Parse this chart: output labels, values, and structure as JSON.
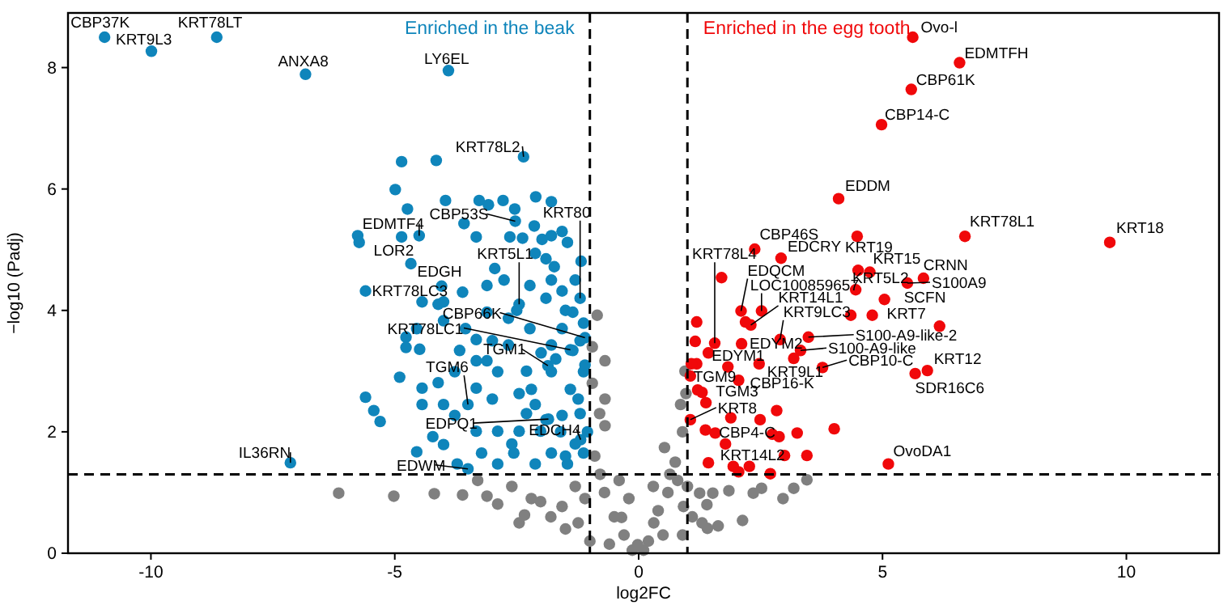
{
  "chart_data": {
    "type": "scatter",
    "xlabel": "log2FC",
    "ylabel": "−log10 (Padj)",
    "xlim": [
      -11.7,
      11.9
    ],
    "ylim": [
      0,
      8.9
    ],
    "xticks": [
      -10,
      -5,
      0,
      5,
      10
    ],
    "yticks": [
      0,
      2,
      4,
      6,
      8
    ],
    "grid": false,
    "marker": "circle",
    "series": [
      {
        "color": "#808080",
        "x": [
          -6.15,
          -5.02,
          -4.19,
          -3.61,
          -3.11,
          -2.89,
          -2.45,
          -2.34,
          -2.01,
          -1.57,
          -1.24,
          -0.79,
          -0.69,
          -0.85,
          -0.69,
          -0.69,
          -0.13,
          0.97,
          0.86,
          0.64,
          0.53,
          1.25,
          1.52,
          1.85,
          2.35,
          2.52,
          2.96,
          3.18,
          3.45,
          2.13,
          1.63,
          1.41,
          1.3,
          0.92,
          0.31,
          -0.02,
          -0.35,
          -0.9,
          -0.8,
          -0.95,
          -0.7,
          -0.5,
          -0.3,
          0.2,
          0.4,
          0.6,
          0.75,
          0.9,
          0.8,
          -1.5,
          -1.8,
          -2.2,
          -1.0,
          -0.6,
          0.1,
          0.5,
          0.9,
          1.1,
          1.4,
          -2.6,
          -3.3,
          -1.3,
          -0.95,
          0.95,
          -0.2,
          0.3,
          -1.1,
          1.0,
          -0.4
        ],
        "values": [
          0.99,
          0.94,
          0.98,
          0.96,
          0.94,
          0.81,
          0.5,
          0.63,
          0.85,
          0.77,
          0.5,
          1.3,
          2.1,
          3.92,
          3.17,
          2.54,
          0.05,
          2.63,
          2.45,
          1.3,
          1.74,
          0.99,
          0.99,
          1.03,
          0.99,
          1.07,
          0.9,
          1.07,
          1.21,
          0.54,
          0.45,
          0.41,
          0.5,
          0.77,
          0.5,
          0.14,
          0.59,
          1.6,
          2.3,
          2.8,
          1.0,
          0.6,
          0.3,
          0.2,
          0.7,
          1.0,
          1.5,
          2.0,
          1.2,
          0.4,
          0.6,
          0.9,
          0.2,
          0.15,
          0.05,
          0.3,
          0.3,
          0.6,
          0.8,
          1.1,
          1.2,
          1.1,
          3.4,
          3.0,
          0.9,
          1.1,
          0.9,
          1.1,
          1.2
        ]
      },
      {
        "name": "Enriched in the beak",
        "color": "#0f85bb",
        "x": [
          -10.95,
          -9.99,
          -8.65,
          -6.83,
          -3.9,
          -2.36,
          -2.53,
          -1.2,
          -4.5,
          -4.67,
          -4.04,
          -2.45,
          -5.6,
          -1.1,
          -1.4,
          -1.86,
          -3.5,
          -1.85,
          -1.19,
          -7.14,
          -3.5,
          -4.86,
          -4.15,
          -4.99,
          -4.74,
          -5.76,
          -5.73,
          -4.86,
          -3.58,
          -3.96,
          -3.27,
          -3.08,
          -2.78,
          -2.54,
          -2.11,
          -1.79,
          -3.33,
          -2.64,
          -2.38,
          -2.14,
          -1.98,
          -1.79,
          -1.57,
          -1.46,
          -1.18,
          -2.12,
          -1.9,
          -1.73,
          -2.95,
          -2.76,
          -2.23,
          -1.79,
          -1.57,
          -3.11,
          -3.61,
          -4.0,
          -4.44,
          -4.11,
          -4.0,
          -4.55,
          -4.77,
          -4.77,
          -4.49,
          -4.9,
          -5.6,
          -5.43,
          -5.3,
          -4.44,
          -4.11,
          -3.67,
          -3.33,
          -3.11,
          -2.89,
          -2.67,
          -2.45,
          -2.12,
          -1.79,
          -1.57,
          -1.35,
          -1.13,
          -3.33,
          -3.0,
          -3.77,
          -4.44,
          -4.22,
          -4.55,
          -4.0,
          -3.72,
          -3.22,
          -2.89,
          -2.56,
          -2.12,
          -1.79,
          -1.46,
          -1.13,
          -1.24,
          -1.57,
          -2.01,
          -2.45,
          -2.89,
          -3.33,
          -4.0,
          -1.13,
          -1.35,
          -1.79,
          -2.23,
          -2.67,
          -3.11,
          -3.55,
          -3.77,
          -3.33,
          -1.3,
          -1.6,
          -1.2,
          -1.9,
          -1.4,
          -1.7,
          -1.2,
          -2.0,
          -2.3,
          -1.5,
          -1.9,
          -1.3,
          -2.5,
          -2.2,
          -1.1,
          -2.6,
          -1.05,
          -1.5,
          -2.3,
          -3.0
        ],
        "values": [
          8.5,
          8.27,
          8.5,
          7.89,
          7.95,
          6.53,
          5.47,
          4.2,
          5.23,
          4.77,
          4.4,
          4.1,
          4.32,
          3.55,
          3.35,
          3.09,
          2.45,
          2.21,
          1.87,
          1.49,
          1.39,
          6.45,
          6.47,
          5.99,
          5.67,
          5.23,
          5.12,
          5.21,
          5.43,
          5.81,
          5.81,
          5.74,
          5.81,
          5.67,
          5.87,
          5.79,
          5.21,
          5.21,
          5.19,
          5.39,
          5.17,
          5.23,
          5.3,
          5.12,
          4.81,
          4.94,
          4.85,
          4.72,
          4.69,
          4.5,
          4.41,
          4.5,
          4.32,
          4.41,
          4.3,
          4.14,
          4.14,
          4.1,
          3.83,
          3.7,
          3.56,
          3.39,
          3.36,
          2.9,
          2.57,
          2.35,
          2.17,
          2.72,
          2.81,
          3.34,
          3.52,
          3.17,
          2.99,
          3.43,
          2.63,
          2.45,
          2.99,
          3.7,
          3.97,
          3.79,
          2.72,
          2.54,
          2.27,
          2.45,
          1.92,
          1.67,
          1.79,
          1.47,
          1.65,
          1.47,
          1.65,
          1.47,
          1.65,
          1.47,
          1.65,
          2.54,
          2.27,
          2.01,
          2.01,
          2.01,
          2.01,
          2.45,
          2.99,
          3.34,
          3.43,
          3.7,
          3.87,
          3.97,
          3.7,
          2.99,
          3.17,
          1.8,
          2.0,
          2.3,
          2.2,
          2.7,
          3.2,
          3.5,
          3.3,
          3.0,
          4.0,
          4.2,
          4.5,
          4.0,
          2.7,
          3.1,
          1.8,
          2.0,
          1.6,
          2.3,
          3.5
        ]
      },
      {
        "name": "Enriched in the egg tooth",
        "color": "#f0080a",
        "x": [
          5.62,
          6.58,
          5.59,
          4.98,
          4.1,
          6.69,
          9.66,
          2.38,
          2.92,
          4.5,
          4.74,
          5.84,
          5.51,
          4.45,
          1.56,
          2.1,
          2.52,
          2.3,
          5.04,
          4.79,
          2.9,
          3.48,
          3.32,
          2.11,
          1.83,
          2.47,
          3.77,
          5.92,
          5.67,
          1.19,
          2.05,
          1.38,
          1.06,
          1.78,
          2.27,
          5.12,
          1.19,
          1.16,
          1.43,
          1.08,
          1.06,
          1.21,
          1.3,
          1.89,
          2.49,
          2.83,
          1.37,
          1.57,
          2.74,
          2.88,
          3.25,
          4.01,
          1.43,
          1.94,
          2.05,
          2.7,
          2.99,
          3.45,
          2.19,
          4.35,
          6.17,
          3.18,
          1.7,
          4.48
        ],
        "values": [
          8.5,
          8.08,
          7.64,
          7.06,
          5.84,
          5.22,
          5.12,
          5.01,
          4.86,
          4.66,
          4.63,
          4.53,
          4.45,
          4.34,
          3.46,
          3.99,
          3.99,
          3.76,
          4.18,
          3.92,
          3.52,
          3.56,
          3.34,
          3.45,
          3.07,
          3.12,
          3.06,
          3.01,
          2.96,
          3.12,
          2.85,
          2.48,
          2.2,
          1.8,
          1.43,
          1.47,
          3.81,
          3.49,
          3.3,
          3.12,
          2.92,
          2.69,
          2.65,
          2.23,
          2.2,
          2.35,
          2.03,
          1.98,
          1.96,
          1.92,
          1.98,
          2.05,
          1.49,
          1.43,
          1.34,
          1.31,
          1.61,
          1.61,
          3.81,
          3.92,
          3.74,
          3.21,
          4.54,
          5.22
        ]
      }
    ],
    "ref_lines": [
      {
        "axis": "x",
        "value": -1,
        "line_style": "dashed"
      },
      {
        "axis": "x",
        "value": 1,
        "line_style": "dashed"
      },
      {
        "axis": "y",
        "value": 1.3,
        "line_style": "dashed"
      }
    ],
    "annotations": [
      {
        "text": "CBP37K",
        "x": -10.95,
        "y": 8.5
      },
      {
        "text": "KRT9L3",
        "x": -9.99,
        "y": 8.27
      },
      {
        "text": "KRT78LT",
        "x": -8.65,
        "y": 8.5
      },
      {
        "text": "ANXA8",
        "x": -6.83,
        "y": 7.89
      },
      {
        "text": "LY6EL",
        "x": -3.9,
        "y": 7.95
      },
      {
        "text": "KRT78L2",
        "x": -2.36,
        "y": 6.53
      },
      {
        "text": "CBP53S",
        "x": -2.53,
        "y": 5.47
      },
      {
        "text": "KRT80",
        "x": -1.2,
        "y": 4.2
      },
      {
        "text": "EDMTF4",
        "x": -4.5,
        "y": 5.23
      },
      {
        "text": "LOR2",
        "x": -4.67,
        "y": 4.77
      },
      {
        "text": "EDGH",
        "x": -4.04,
        "y": 4.4
      },
      {
        "text": "KRT5L1",
        "x": -2.45,
        "y": 4.1
      },
      {
        "text": "KRT78LC3",
        "x": -5.6,
        "y": 4.32
      },
      {
        "text": "CBP66K",
        "x": -1.1,
        "y": 3.55
      },
      {
        "text": "KRT78LC1",
        "x": -1.4,
        "y": 3.35
      },
      {
        "text": "TGM1",
        "x": -1.86,
        "y": 3.09
      },
      {
        "text": "TGM6",
        "x": -3.5,
        "y": 2.45
      },
      {
        "text": "EDPQ1",
        "x": -1.85,
        "y": 2.21
      },
      {
        "text": "EDCH4",
        "x": -1.19,
        "y": 1.87
      },
      {
        "text": "IL36RN",
        "x": -7.14,
        "y": 1.49
      },
      {
        "text": "EDWM",
        "x": -3.5,
        "y": 1.39
      },
      {
        "text": "Ovo-l",
        "x": 5.62,
        "y": 8.5
      },
      {
        "text": "EDMTFH",
        "x": 6.58,
        "y": 8.08
      },
      {
        "text": "CBP61K",
        "x": 5.59,
        "y": 7.64
      },
      {
        "text": "CBP14-C",
        "x": 4.98,
        "y": 7.06
      },
      {
        "text": "EDDM",
        "x": 4.1,
        "y": 5.84
      },
      {
        "text": "KRT78L1",
        "x": 6.69,
        "y": 5.22
      },
      {
        "text": "KRT18",
        "x": 9.66,
        "y": 5.12
      },
      {
        "text": "CBP46S",
        "x": 2.38,
        "y": 5.01
      },
      {
        "text": "EDCRY",
        "x": 2.92,
        "y": 4.86
      },
      {
        "text": "KRT19",
        "x": 4.5,
        "y": 4.66
      },
      {
        "text": "KRT15",
        "x": 4.74,
        "y": 4.63
      },
      {
        "text": "CRNN",
        "x": 5.84,
        "y": 4.53
      },
      {
        "text": "S100A9",
        "x": 5.51,
        "y": 4.45
      },
      {
        "text": "KRT5L2",
        "x": 4.45,
        "y": 4.34
      },
      {
        "text": "KRT78L4",
        "x": 1.56,
        "y": 3.46
      },
      {
        "text": "EDQCM",
        "x": 2.1,
        "y": 3.99
      },
      {
        "text": "LOC100859657",
        "x": 2.52,
        "y": 3.99
      },
      {
        "text": "KRT14L1",
        "x": 2.3,
        "y": 3.76
      },
      {
        "text": "SCFN",
        "x": 5.04,
        "y": 4.18
      },
      {
        "text": "KRT7",
        "x": 4.79,
        "y": 3.92
      },
      {
        "text": "KRT9LC3",
        "x": 2.9,
        "y": 3.52
      },
      {
        "text": "S100-A9-like-2",
        "x": 3.48,
        "y": 3.56
      },
      {
        "text": "S100-A9-like",
        "x": 3.32,
        "y": 3.34
      },
      {
        "text": "EDYM2",
        "x": 2.11,
        "y": 3.45
      },
      {
        "text": "EDYM1",
        "x": 1.83,
        "y": 3.07
      },
      {
        "text": "KRT9L1",
        "x": 2.47,
        "y": 3.12
      },
      {
        "text": "CBP10-C",
        "x": 3.77,
        "y": 3.06
      },
      {
        "text": "KRT12",
        "x": 5.92,
        "y": 3.01
      },
      {
        "text": "SDR16C6",
        "x": 5.67,
        "y": 2.96
      },
      {
        "text": "TGM9",
        "x": 1.19,
        "y": 3.12
      },
      {
        "text": "CBP16-K",
        "x": 2.05,
        "y": 2.85
      },
      {
        "text": "TGM3",
        "x": 1.38,
        "y": 2.48
      },
      {
        "text": "KRT8",
        "x": 1.06,
        "y": 2.2
      },
      {
        "text": "CBP4-C",
        "x": 1.78,
        "y": 1.8
      },
      {
        "text": "KRT14L2",
        "x": 2.27,
        "y": 1.43
      },
      {
        "text": "OvoDA1",
        "x": 5.12,
        "y": 1.47
      }
    ]
  }
}
